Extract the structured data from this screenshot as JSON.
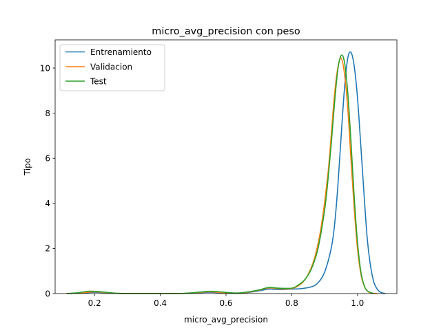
{
  "chart_data": {
    "type": "line",
    "title": "micro_avg_precision con peso",
    "xlabel": "micro_avg_precision",
    "ylabel": "Tipo",
    "xlim": [
      0.08,
      1.12
    ],
    "ylim": [
      0,
      11.25
    ],
    "xticks": [
      0.2,
      0.4,
      0.6,
      0.8,
      1.0
    ],
    "xtick_labels": [
      "0.2",
      "0.4",
      "0.6",
      "0.8",
      "1.0"
    ],
    "yticks": [
      0,
      2,
      4,
      6,
      8,
      10
    ],
    "ytick_labels": [
      "0",
      "2",
      "4",
      "6",
      "8",
      "10"
    ],
    "grid": false,
    "legend_position": "upper-left",
    "series": [
      {
        "name": "Entrenamiento",
        "color": "#1f77b4",
        "x": [
          0.115,
          0.16,
          0.2,
          0.24,
          0.28,
          0.35,
          0.45,
          0.5,
          0.55,
          0.6,
          0.65,
          0.7,
          0.73,
          0.76,
          0.8,
          0.83,
          0.86,
          0.88,
          0.9,
          0.92,
          0.93,
          0.94,
          0.95,
          0.96,
          0.97,
          0.98,
          0.99,
          1.0,
          1.01,
          1.02,
          1.03,
          1.04,
          1.05,
          1.06,
          1.07,
          1.085
        ],
        "y": [
          0.0,
          0.02,
          0.06,
          0.03,
          0.0,
          0.0,
          0.0,
          0.02,
          0.06,
          0.02,
          0.02,
          0.12,
          0.2,
          0.18,
          0.2,
          0.22,
          0.3,
          0.48,
          0.95,
          2.0,
          3.0,
          4.7,
          6.9,
          9.0,
          10.4,
          10.7,
          10.1,
          8.7,
          6.6,
          4.4,
          2.4,
          1.2,
          0.5,
          0.2,
          0.06,
          0.0
        ]
      },
      {
        "name": "Validacion",
        "color": "#ff7f0e",
        "x": [
          0.115,
          0.16,
          0.2,
          0.24,
          0.28,
          0.35,
          0.45,
          0.5,
          0.55,
          0.6,
          0.65,
          0.7,
          0.73,
          0.76,
          0.8,
          0.83,
          0.85,
          0.87,
          0.89,
          0.91,
          0.92,
          0.93,
          0.94,
          0.95,
          0.96,
          0.97,
          0.98,
          0.99,
          1.0,
          1.01,
          1.02,
          1.03,
          1.04,
          1.06
        ],
        "y": [
          0.0,
          0.03,
          0.08,
          0.04,
          0.0,
          0.0,
          0.0,
          0.03,
          0.08,
          0.03,
          0.03,
          0.15,
          0.25,
          0.22,
          0.22,
          0.45,
          0.85,
          1.6,
          3.0,
          5.3,
          7.0,
          8.8,
          10.0,
          10.45,
          9.8,
          8.3,
          6.0,
          3.8,
          2.0,
          0.9,
          0.35,
          0.12,
          0.03,
          0.0
        ]
      },
      {
        "name": "Test",
        "color": "#2ca02c",
        "x": [
          0.115,
          0.15,
          0.18,
          0.2,
          0.22,
          0.26,
          0.3,
          0.35,
          0.45,
          0.5,
          0.53,
          0.55,
          0.58,
          0.62,
          0.65,
          0.7,
          0.73,
          0.76,
          0.8,
          0.82,
          0.84,
          0.86,
          0.88,
          0.9,
          0.91,
          0.92,
          0.93,
          0.94,
          0.95,
          0.96,
          0.97,
          0.98,
          0.99,
          1.0,
          1.01,
          1.02,
          1.03,
          1.05
        ],
        "y": [
          0.0,
          0.04,
          0.1,
          0.1,
          0.08,
          0.02,
          0.0,
          0.0,
          0.0,
          0.04,
          0.08,
          0.1,
          0.08,
          0.03,
          0.04,
          0.16,
          0.27,
          0.24,
          0.24,
          0.38,
          0.62,
          1.1,
          2.0,
          3.7,
          5.0,
          6.6,
          8.4,
          9.9,
          10.55,
          10.3,
          9.0,
          6.8,
          4.3,
          2.3,
          1.0,
          0.38,
          0.12,
          0.0
        ]
      }
    ]
  }
}
